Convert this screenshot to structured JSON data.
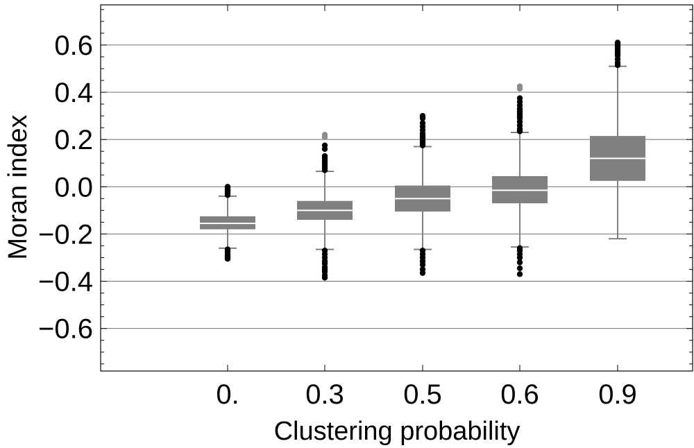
{
  "chart_data": {
    "type": "boxplot",
    "xlabel": "Clustering probability",
    "ylabel": "Moran index",
    "ylim": [
      -0.78,
      0.77
    ],
    "yticks": [
      {
        "value": -0.6,
        "label": "−0.6"
      },
      {
        "value": -0.4,
        "label": "−0.4"
      },
      {
        "value": -0.2,
        "label": "−0.2"
      },
      {
        "value": 0.0,
        "label": "0.0"
      },
      {
        "value": 0.2,
        "label": "0.2"
      },
      {
        "value": 0.4,
        "label": "0.4"
      },
      {
        "value": 0.6,
        "label": "0.6"
      }
    ],
    "grid": true,
    "colors": {
      "box": "#808080",
      "median": "#ffffff",
      "whisker": "#808080",
      "outlier": "#000000",
      "far_outlier": "#8c8c8c",
      "grid": "#707070"
    },
    "boxes": [
      {
        "label": "0.",
        "whisker_low": -0.26,
        "q1": -0.18,
        "median": -0.155,
        "q3": -0.125,
        "whisker_high": -0.04,
        "outliers_high": [
          -0.035,
          -0.03,
          -0.025,
          -0.02,
          -0.015,
          -0.01,
          -0.005,
          0.0
        ],
        "outliers_low": [
          -0.265,
          -0.275,
          -0.285,
          -0.29,
          -0.295,
          -0.3,
          -0.305
        ],
        "far_outliers": []
      },
      {
        "label": "0.3",
        "whisker_low": -0.265,
        "q1": -0.14,
        "median": -0.1,
        "q3": -0.06,
        "whisker_high": 0.065,
        "outliers_high": [
          0.07,
          0.08,
          0.09,
          0.1,
          0.11,
          0.12,
          0.13,
          0.16,
          0.175
        ],
        "outliers_low": [
          -0.27,
          -0.285,
          -0.3,
          -0.315,
          -0.325,
          -0.34,
          -0.35,
          -0.36,
          -0.375,
          -0.385
        ],
        "far_outliers": [
          0.21,
          0.22
        ]
      },
      {
        "label": "0.5",
        "whisker_low": -0.265,
        "q1": -0.105,
        "median": -0.05,
        "q3": 0.005,
        "whisker_high": 0.17,
        "outliers_high": [
          0.175,
          0.185,
          0.195,
          0.205,
          0.215,
          0.225,
          0.24,
          0.255,
          0.27,
          0.29,
          0.3
        ],
        "outliers_low": [
          -0.27,
          -0.285,
          -0.3,
          -0.315,
          -0.33,
          -0.35,
          -0.365
        ],
        "far_outliers": []
      },
      {
        "label": "0.6",
        "whisker_low": -0.255,
        "q1": -0.07,
        "median": -0.015,
        "q3": 0.045,
        "whisker_high": 0.23,
        "outliers_high": [
          0.235,
          0.245,
          0.26,
          0.275,
          0.29,
          0.3,
          0.31,
          0.32,
          0.33,
          0.345,
          0.36,
          0.375
        ],
        "outliers_low": [
          -0.26,
          -0.27,
          -0.285,
          -0.3,
          -0.32,
          -0.345,
          -0.37
        ],
        "far_outliers": [
          0.415,
          0.425
        ]
      },
      {
        "label": "0.9",
        "whisker_low": -0.22,
        "q1": 0.025,
        "median": 0.12,
        "q3": 0.215,
        "whisker_high": 0.51,
        "outliers_high": [
          0.515,
          0.525,
          0.54,
          0.555,
          0.565,
          0.575,
          0.585,
          0.595,
          0.605,
          0.61
        ],
        "outliers_low": [],
        "far_outliers": []
      }
    ]
  }
}
